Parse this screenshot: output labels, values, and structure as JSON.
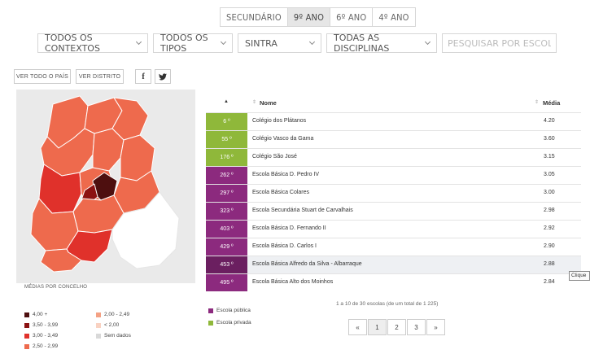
{
  "levels": [
    "SECUNDÁRIO",
    "9º ANO",
    "6º ANO",
    "4º ANO"
  ],
  "active_level": "9º ANO",
  "filters": {
    "context": "TODOS OS CONTEXTOS",
    "type": "TODOS OS TIPOS",
    "municipality": "SINTRA",
    "discipline": "TODAS AS DISCIPLINAS",
    "search_placeholder": "PESQUISAR POR ESCOLA"
  },
  "view_buttons": {
    "country": "VER TODO O PAÍS",
    "district": "VER DISTRITO"
  },
  "share": {
    "facebook": "f",
    "twitter": "twitter"
  },
  "legend": {
    "title": "MÉDIAS POR CONCELHO",
    "items": [
      {
        "label": "4,00 +",
        "color": "#4e0f0f"
      },
      {
        "label": "3,50 - 3,99",
        "color": "#8c1212"
      },
      {
        "label": "3,00 - 3,49",
        "color": "#e0312b"
      },
      {
        "label": "2,50 - 2,99",
        "color": "#ee6a4d"
      },
      {
        "label": "2,00 - 2,49",
        "color": "#f4a184"
      },
      {
        "label": "< 2,00",
        "color": "#f9d2c2"
      },
      {
        "label": "Sem dados",
        "color": "#d9d9d9"
      }
    ]
  },
  "school_types": [
    {
      "label": "Escola pública",
      "color": "#8c2a7e"
    },
    {
      "label": "Escola privada",
      "color": "#8fb83a"
    }
  ],
  "table": {
    "sort_arrow": "▲",
    "col_name": "Nome",
    "col_score": "Média",
    "rows": [
      {
        "rank": "6 º",
        "name": "Colégio dos Plátanos",
        "score": "4.20",
        "type": "private"
      },
      {
        "rank": "55 º",
        "name": "Colégio Vasco da Gama",
        "score": "3.60",
        "type": "private"
      },
      {
        "rank": "176 º",
        "name": "Colégio São José",
        "score": "3.15",
        "type": "private"
      },
      {
        "rank": "262 º",
        "name": "Escola Básica D. Pedro IV",
        "score": "3.05",
        "type": "public"
      },
      {
        "rank": "297 º",
        "name": "Escola Básica Colares",
        "score": "3.00",
        "type": "public"
      },
      {
        "rank": "323 º",
        "name": "Escola Secundária Stuart de Carvalhais",
        "score": "2.98",
        "type": "public"
      },
      {
        "rank": "403 º",
        "name": "Escola Básica D. Fernando II",
        "score": "2.92",
        "type": "public"
      },
      {
        "rank": "429 º",
        "name": "Escola Básica D. Carlos I",
        "score": "2.90",
        "type": "public"
      },
      {
        "rank": "453 º",
        "name": "Escola Básica Alfredo da Silva - Albarraque",
        "score": "2.88",
        "type": "public"
      },
      {
        "rank": "495 º",
        "name": "Escola Básica Alto dos Moinhos",
        "score": "2.84",
        "type": "public"
      }
    ]
  },
  "tooltip": "Clique",
  "pagination": {
    "summary": "1 a 10 de 30 escolas (de um total de 1 225)",
    "buttons": [
      "«",
      "1",
      "2",
      "3",
      "»"
    ],
    "active": "1"
  },
  "colors": {
    "private": "#8fb83a",
    "public": "#8c2a7e",
    "public_hover": "#6b1f60"
  }
}
